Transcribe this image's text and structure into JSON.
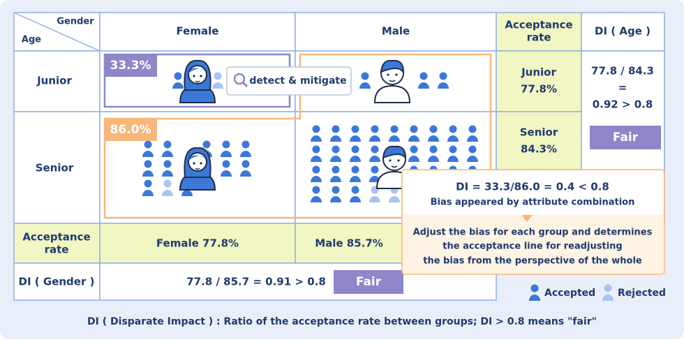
{
  "header": {
    "gender": "Gender",
    "age": "Age",
    "female": "Female",
    "male": "Male",
    "acceptance_rate": [
      "Acceptance",
      "rate"
    ],
    "di_age": "DI ( Age )"
  },
  "rows": {
    "junior": "Junior",
    "senior": "Senior"
  },
  "cells": {
    "junior_female_rate": "33.3%",
    "senior_rate": "86.0%",
    "detect_button": "detect & mitigate"
  },
  "acceptance_by_age": {
    "junior": [
      "Junior",
      "77.8%"
    ],
    "senior": [
      "Senior",
      "84.3%"
    ]
  },
  "di_age": {
    "lines": [
      "77.8 / 84.3",
      "=",
      "0.92 > 0.8"
    ],
    "verdict": "Fair"
  },
  "acceptance_row": {
    "label": [
      "Acceptance",
      "rate"
    ],
    "female": "Female 77.8%",
    "male": "Male 85.7%"
  },
  "di_gender": {
    "label": "DI ( Gender )",
    "formula": "77.8 / 85.7 = 0.91 > 0.8",
    "verdict": "Fair"
  },
  "callout": {
    "formula": "DI = 33.3/86.0 = 0.4 < 0.8",
    "subtitle": "Bias appeared by attribute combination",
    "body": [
      "Adjust the bias for each group and determines",
      "the acceptance line for readjusting",
      "the bias from the perspective of the whole"
    ]
  },
  "legend": {
    "accepted": "Accepted",
    "rejected": "Rejected"
  },
  "footnote": "DI ( Disparate Impact ) : Ratio of the acceptance rate between groups; DI > 0.8 means \"fair\""
}
